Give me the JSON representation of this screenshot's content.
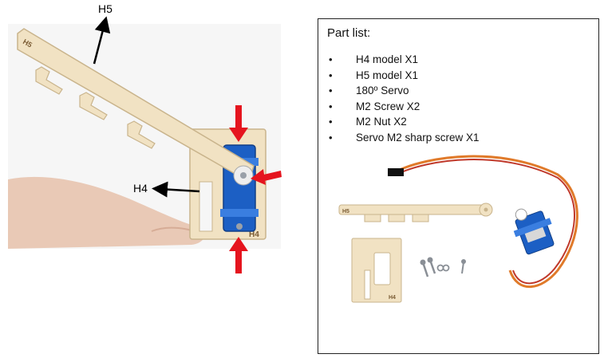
{
  "figure": {
    "labels": {
      "h5": "H5",
      "h4": "H4",
      "h5_engraving": "H5",
      "h4_engraving": "H4"
    },
    "colors": {
      "arrow_red": "#e5141e",
      "wood": "#f1e2c3",
      "servo_blue": "#1c5fc4"
    }
  },
  "part_list": {
    "title": "Part list:",
    "bullet": "•",
    "items": [
      "H4 model X1",
      "H5 model X1",
      "180º Servo",
      "M2 Screw X2",
      "M2 Nut X2",
      "Servo M2 sharp screw X1"
    ]
  }
}
